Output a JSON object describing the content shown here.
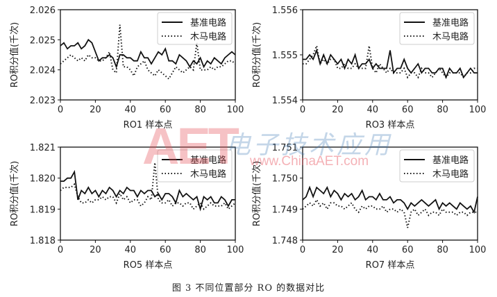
{
  "caption": "图 3   不同位置部分 RO 的数据对比",
  "watermark": {
    "logo": "AET",
    "cn": "电子技术应用",
    "url": "www.ChinaAET.com"
  },
  "chart_data": [
    {
      "type": "line",
      "title": "",
      "xlabel": "RO1 样本点",
      "ylabel": "RO积分值(千次)",
      "xlim": [
        0,
        100
      ],
      "ylim": [
        2.023,
        2.026
      ],
      "xticks": [
        "0",
        "20",
        "40",
        "60",
        "80",
        "100"
      ],
      "yticks": [
        "2.023",
        "2.024",
        "2.025",
        "2.026"
      ],
      "legend": "top-right",
      "grid": false,
      "x_step": 2,
      "series": [
        {
          "name": "基准电路",
          "style": "solid",
          "values": [
            2.0248,
            2.0249,
            2.0247,
            2.0248,
            2.0248,
            2.0249,
            2.0247,
            2.0248,
            2.025,
            2.0249,
            2.0246,
            2.0243,
            2.0244,
            2.0244,
            2.0245,
            2.0244,
            2.0241,
            2.0245,
            2.0245,
            2.0244,
            2.0244,
            2.0243,
            2.0243,
            2.0246,
            2.0244,
            2.0244,
            2.0242,
            2.0244,
            2.0246,
            2.0245,
            2.0247,
            2.0243,
            2.0243,
            2.0242,
            2.0245,
            2.0244,
            2.0243,
            2.0241,
            2.0243,
            2.0242,
            2.0244,
            2.0241,
            2.0243,
            2.0242,
            2.0244,
            2.0243,
            2.0242,
            2.0244,
            2.0245,
            2.0246,
            2.0245
          ]
        },
        {
          "name": "木马电路",
          "style": "dotted",
          "values": [
            2.0242,
            2.0243,
            2.0244,
            2.0245,
            2.0244,
            2.0243,
            2.0244,
            2.0243,
            2.0245,
            2.0244,
            2.0244,
            2.0243,
            2.0243,
            2.0244,
            2.0246,
            2.024,
            2.0239,
            2.0255,
            2.0241,
            2.0241,
            2.024,
            2.0238,
            2.0241,
            2.0242,
            2.0243,
            2.024,
            2.0239,
            2.0238,
            2.024,
            2.0239,
            2.0238,
            2.0237,
            2.0239,
            2.0241,
            2.024,
            2.0239,
            2.024,
            2.0241,
            2.024,
            2.0249,
            2.024,
            2.024,
            2.024,
            2.0241,
            2.024,
            2.0241,
            2.0241,
            2.0242,
            2.0243,
            2.0243,
            2.0242
          ]
        }
      ]
    },
    {
      "type": "line",
      "title": "",
      "xlabel": "RO3 样本点",
      "ylabel": "RO积分值(千次)",
      "xlim": [
        0,
        100
      ],
      "ylim": [
        1.554,
        1.556
      ],
      "xticks": [
        "0",
        "20",
        "40",
        "60",
        "80",
        "100"
      ],
      "yticks": [
        "1.554",
        "1.555",
        "1.556"
      ],
      "legend": "top-right",
      "grid": false,
      "x_step": 2,
      "series": [
        {
          "name": "基准电路",
          "style": "solid",
          "values": [
            1.5549,
            1.5549,
            1.555,
            1.5549,
            1.5551,
            1.5548,
            1.555,
            1.5548,
            1.555,
            1.5549,
            1.5548,
            1.5549,
            1.5547,
            1.5549,
            1.5548,
            1.555,
            1.5547,
            1.5548,
            1.5548,
            1.5549,
            1.5547,
            1.5548,
            1.5547,
            1.5547,
            1.5547,
            1.5551,
            1.5546,
            1.5547,
            1.5547,
            1.5549,
            1.5547,
            1.5546,
            1.5547,
            1.5548,
            1.5546,
            1.5547,
            1.5547,
            1.5546,
            1.5546,
            1.5547,
            1.5547,
            1.5545,
            1.5547,
            1.5546,
            1.5546,
            1.5547,
            1.5545,
            1.5546,
            1.5547,
            1.5546,
            1.5546
          ]
        },
        {
          "name": "木马电路",
          "style": "dotted",
          "values": [
            1.5548,
            1.5548,
            1.5549,
            1.555,
            1.5552,
            1.5548,
            1.5549,
            1.5548,
            1.5549,
            1.5549,
            1.5547,
            1.5547,
            1.5548,
            1.5547,
            1.5547,
            1.5548,
            1.5547,
            1.5547,
            1.5547,
            1.5552,
            1.5547,
            1.5546,
            1.5548,
            1.5547,
            1.5546,
            1.5547,
            1.5546,
            1.5546,
            1.5546,
            1.5547,
            1.5545,
            1.5546,
            1.5546,
            1.5545,
            1.5547,
            1.5546,
            1.5546,
            1.5545,
            1.5546,
            1.5547,
            1.5546,
            1.5545,
            1.5546,
            1.5546,
            1.5546,
            1.5546,
            1.5545,
            1.5546,
            1.5546,
            1.5547,
            1.5547
          ]
        }
      ]
    },
    {
      "type": "line",
      "title": "",
      "xlabel": "RO5 样本点",
      "ylabel": "RO积分值(千次)",
      "xlim": [
        0,
        100
      ],
      "ylim": [
        1.818,
        1.821
      ],
      "xticks": [
        "0",
        "20",
        "40",
        "60",
        "80",
        "100"
      ],
      "yticks": [
        "1.818",
        "1.819",
        "1.820",
        "1.821"
      ],
      "legend": "top-right",
      "grid": false,
      "x_step": 2,
      "series": [
        {
          "name": "基准电路",
          "style": "solid",
          "values": [
            1.8199,
            1.8199,
            1.82,
            1.82,
            1.8202,
            1.8193,
            1.8196,
            1.8195,
            1.8197,
            1.8195,
            1.8196,
            1.8194,
            1.8196,
            1.8195,
            1.8197,
            1.8196,
            1.8194,
            1.8196,
            1.8195,
            1.8197,
            1.8196,
            1.8196,
            1.8194,
            1.8196,
            1.8195,
            1.8196,
            1.8196,
            1.8194,
            1.8195,
            1.8193,
            1.8195,
            1.8195,
            1.8194,
            1.8192,
            1.8196,
            1.8194,
            1.8195,
            1.8194,
            1.8193,
            1.8194,
            1.819,
            1.8194,
            1.8193,
            1.8194,
            1.8192,
            1.8192,
            1.8194,
            1.8193,
            1.8191,
            1.8193,
            1.8193
          ]
        },
        {
          "name": "木马电路",
          "style": "dotted",
          "values": [
            1.8196,
            1.8197,
            1.8197,
            1.8197,
            1.8198,
            1.8194,
            1.8192,
            1.8192,
            1.8193,
            1.8192,
            1.8193,
            1.8193,
            1.8194,
            1.8193,
            1.8194,
            1.8194,
            1.8192,
            1.8195,
            1.8193,
            1.8194,
            1.8192,
            1.8193,
            1.8193,
            1.8191,
            1.8192,
            1.8194,
            1.8193,
            1.8205,
            1.8193,
            1.8192,
            1.8192,
            1.8193,
            1.8191,
            1.8192,
            1.8192,
            1.8191,
            1.8192,
            1.8192,
            1.819,
            1.8191,
            1.8192,
            1.819,
            1.8191,
            1.8192,
            1.8191,
            1.8191,
            1.8191,
            1.8192,
            1.819,
            1.8191,
            1.8192
          ]
        }
      ]
    },
    {
      "type": "line",
      "title": "",
      "xlabel": "RO7 样本点",
      "ylabel": "RO积分值(千次)",
      "xlim": [
        0,
        100
      ],
      "ylim": [
        1.748,
        1.751
      ],
      "xticks": [
        "0",
        "20",
        "40",
        "60",
        "80",
        "100"
      ],
      "yticks": [
        "1.748",
        "1.749",
        "1.750",
        "1.751"
      ],
      "legend": "top-right",
      "grid": false,
      "x_step": 2,
      "series": [
        {
          "name": "基准电路",
          "style": "solid",
          "values": [
            1.7493,
            1.7494,
            1.7497,
            1.7494,
            1.7497,
            1.7496,
            1.7495,
            1.7497,
            1.7494,
            1.7496,
            1.7495,
            1.7493,
            1.7495,
            1.7494,
            1.7495,
            1.7493,
            1.7494,
            1.7496,
            1.7493,
            1.7494,
            1.7494,
            1.7493,
            1.7495,
            1.7493,
            1.7493,
            1.7494,
            1.7492,
            1.7493,
            1.7493,
            1.7492,
            1.749,
            1.7492,
            1.7491,
            1.7492,
            1.7493,
            1.7492,
            1.7491,
            1.7492,
            1.7493,
            1.749,
            1.7492,
            1.7491,
            1.7492,
            1.7491,
            1.749,
            1.7492,
            1.7491,
            1.749,
            1.7491,
            1.7489,
            1.7494
          ]
        },
        {
          "name": "木马电路",
          "style": "dotted",
          "values": [
            1.749,
            1.7491,
            1.7492,
            1.7491,
            1.7493,
            1.7491,
            1.7492,
            1.749,
            1.7492,
            1.7492,
            1.7491,
            1.7491,
            1.749,
            1.7491,
            1.7492,
            1.749,
            1.7489,
            1.7491,
            1.749,
            1.7491,
            1.7491,
            1.749,
            1.749,
            1.7491,
            1.7489,
            1.749,
            1.749,
            1.7489,
            1.749,
            1.7489,
            1.7484,
            1.7489,
            1.749,
            1.7488,
            1.7489,
            1.749,
            1.7488,
            1.7489,
            1.7489,
            1.7488,
            1.749,
            1.7489,
            1.7489,
            1.7489,
            1.7488,
            1.7489,
            1.7489,
            1.7488,
            1.7489,
            1.7489,
            1.7489
          ]
        }
      ]
    }
  ]
}
